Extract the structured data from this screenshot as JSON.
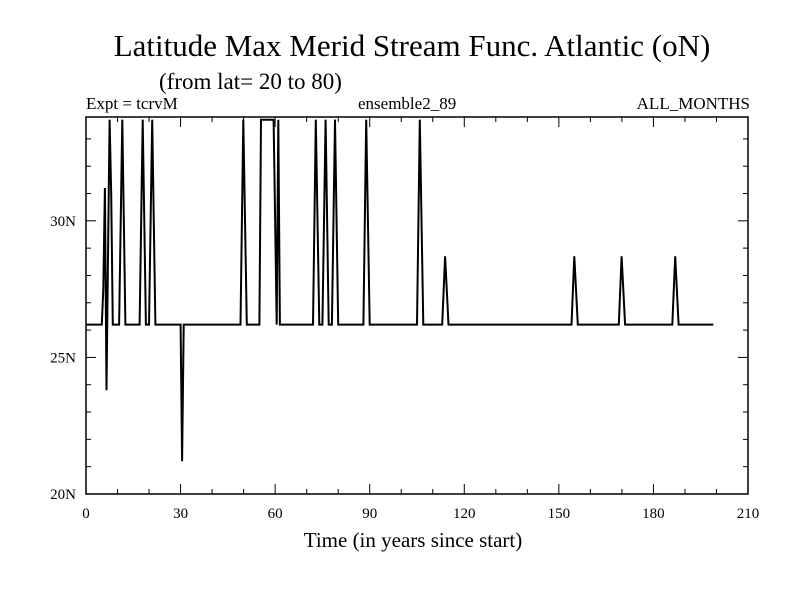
{
  "chart_data": {
    "type": "line",
    "title": "Latitude Max Merid Stream Func. Atlantic (oN)",
    "subtitle": "(from lat= 20 to 80)",
    "header_left": "Expt = tcrvM",
    "header_center": "ensemble2_89",
    "header_right": "ALL_MONTHS",
    "xlabel": "Time (in years since start)",
    "ylabel": "",
    "xlim": [
      0,
      210
    ],
    "ylim": [
      20,
      33.8
    ],
    "x_major_ticks": [
      0,
      30,
      60,
      90,
      120,
      150,
      180,
      210
    ],
    "x_tick_labels": [
      "0",
      "30",
      "60",
      "90",
      "120",
      "150",
      "180",
      "210"
    ],
    "x_minor_step": 10,
    "y_major_ticks": [
      20,
      25,
      30
    ],
    "y_tick_labels": [
      "20N",
      "25N",
      "30N"
    ],
    "y_minor_step": 1,
    "grid": false,
    "line_color": "#000000",
    "series": [
      {
        "x": [
          0,
          5,
          5.5,
          6,
          6.5,
          7,
          7.5,
          8,
          8.5,
          9,
          10.5,
          11.5,
          12.5,
          17,
          18,
          19,
          20,
          21,
          22,
          30,
          30.5,
          31,
          32,
          49,
          49.9,
          51,
          55,
          55.5,
          59.5,
          60.5,
          61,
          61.5,
          62,
          63,
          72,
          72.9,
          74,
          75,
          76,
          77,
          78,
          79,
          80,
          88,
          88.9,
          90,
          105,
          105.9,
          107,
          113,
          113.9,
          115,
          154,
          154.9,
          156,
          169,
          169.9,
          171,
          186,
          186.9,
          188,
          199
        ],
        "y": [
          26.2,
          26.2,
          27.5,
          31.2,
          23.8,
          29.0,
          33.7,
          31.0,
          26.2,
          26.2,
          26.2,
          33.7,
          26.2,
          26.2,
          33.7,
          26.2,
          26.2,
          33.7,
          26.2,
          26.2,
          21.2,
          26.2,
          26.2,
          26.2,
          33.7,
          26.2,
          26.2,
          33.7,
          33.7,
          26.2,
          33.7,
          26.2,
          26.2,
          26.2,
          26.2,
          33.7,
          26.2,
          26.2,
          33.7,
          26.2,
          26.2,
          33.7,
          26.2,
          26.2,
          33.7,
          26.2,
          26.2,
          33.7,
          26.2,
          26.2,
          28.7,
          26.2,
          26.2,
          28.7,
          26.2,
          26.2,
          28.7,
          26.2,
          26.2,
          28.7,
          26.2,
          26.2
        ]
      }
    ]
  }
}
